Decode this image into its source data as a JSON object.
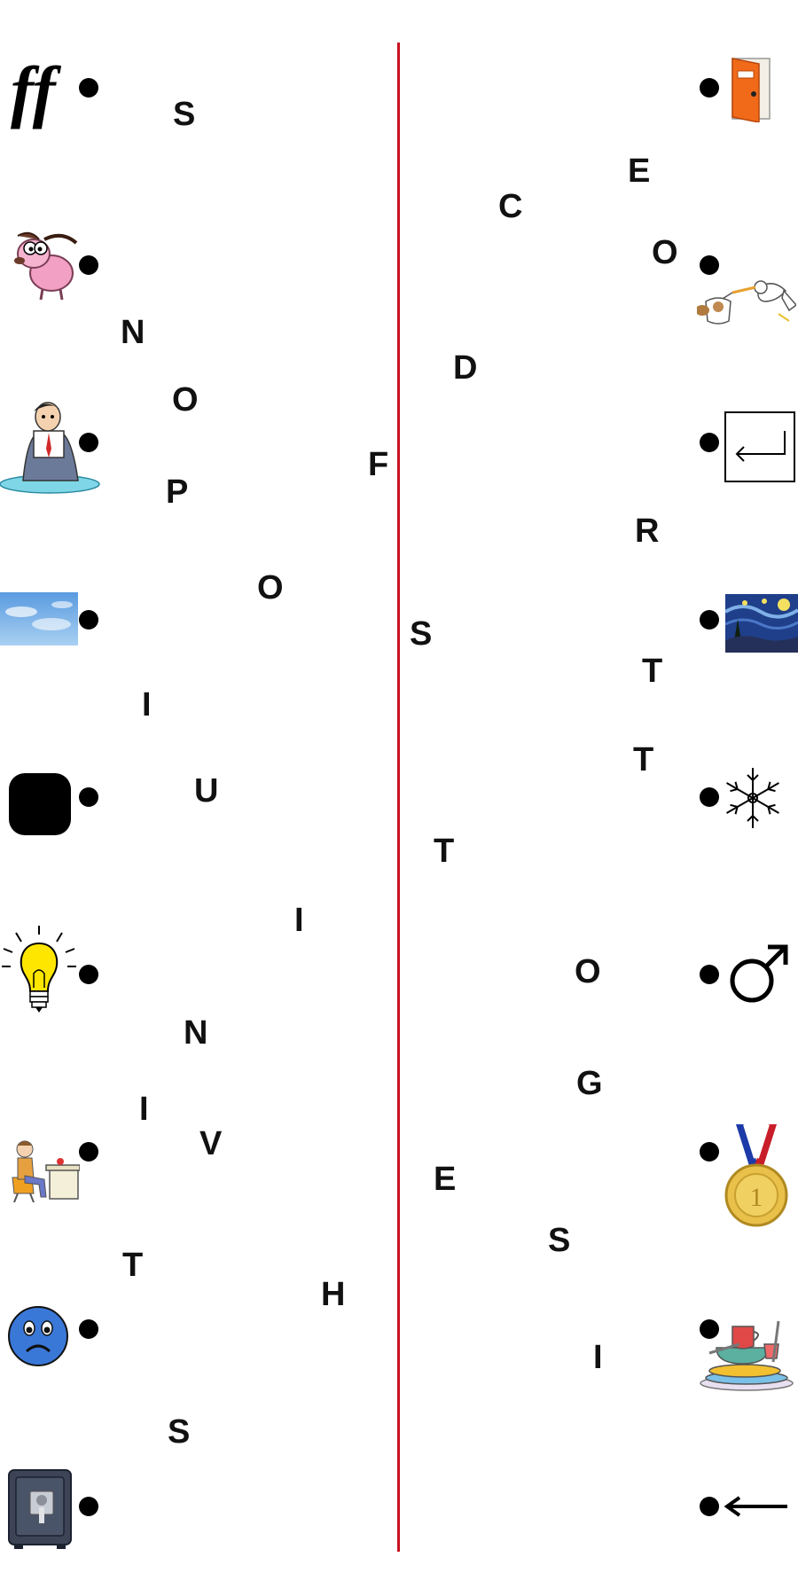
{
  "left_column": {
    "items": [
      {
        "icon": "fortissimo-ff-icon",
        "text": "ff"
      },
      {
        "icon": "pink-dog-cartoon-icon"
      },
      {
        "icon": "melting-man-icon"
      },
      {
        "icon": "blue-sky-icon"
      },
      {
        "icon": "black-rounded-square-icon"
      },
      {
        "icon": "light-bulb-icon"
      },
      {
        "icon": "man-at-desk-icon"
      },
      {
        "icon": "sad-face-icon"
      },
      {
        "icon": "safe-vault-icon"
      }
    ]
  },
  "right_column": {
    "items": [
      {
        "icon": "orange-door-icon"
      },
      {
        "icon": "stork-delivery-icon"
      },
      {
        "icon": "enter-key-icon"
      },
      {
        "icon": "starry-night-painting-icon"
      },
      {
        "icon": "snowflake-icon"
      },
      {
        "icon": "male-symbol-icon"
      },
      {
        "icon": "gold-medal-icon"
      },
      {
        "icon": "dirty-dishes-icon"
      },
      {
        "icon": "left-arrow-icon"
      }
    ]
  },
  "letters": [
    "S",
    "N",
    "O",
    "P",
    "F",
    "O",
    "I",
    "U",
    "I",
    "N",
    "I",
    "V",
    "T",
    "H",
    "S",
    "E",
    "C",
    "O",
    "D",
    "R",
    "S",
    "T",
    "T",
    "T",
    "O",
    "G",
    "E",
    "S",
    "I"
  ],
  "colors": {
    "divider": "#c8101e",
    "dot": "#000000",
    "letter": "#111111"
  }
}
